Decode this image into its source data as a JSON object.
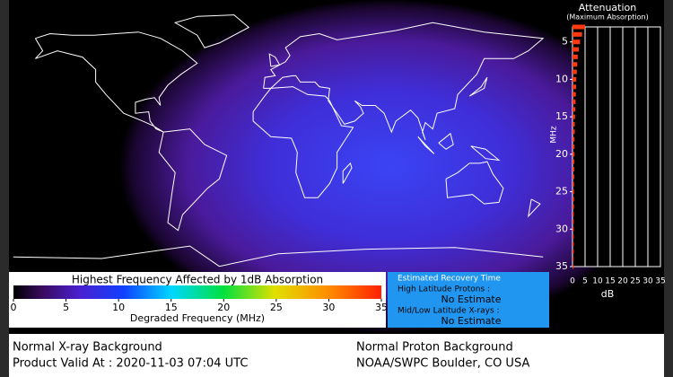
{
  "chart_data": {
    "type": "bar",
    "orientation": "horizontal",
    "title": "Attenuation",
    "subtitle": "(Maximum Absorption)",
    "y_label": "MHz",
    "x_label": "dB",
    "y": [
      3,
      4,
      5,
      6,
      7,
      8,
      9,
      10,
      11,
      12,
      13,
      14,
      15,
      16,
      17,
      18,
      19,
      20,
      21,
      22,
      23,
      24,
      25,
      26,
      27,
      28,
      29,
      30,
      31,
      32,
      33,
      34,
      35
    ],
    "values": [
      5,
      3.8,
      3,
      2.5,
      2.1,
      1.9,
      1.7,
      1.5,
      1.4,
      1.3,
      1.2,
      1.1,
      1,
      0.9,
      0.9,
      0.8,
      0.8,
      0.8,
      0.7,
      0.7,
      0.7,
      0.6,
      0.6,
      0.6,
      0.6,
      0.5,
      0.5,
      0.5,
      0.5,
      0.5,
      0.5,
      0.4,
      0.4
    ],
    "color": "#ff3a10",
    "xlim": [
      0,
      35
    ],
    "xticks": [
      0,
      5,
      10,
      15,
      20,
      25,
      30,
      35
    ],
    "ylim": [
      3,
      35
    ],
    "yticks": [
      5,
      10,
      15,
      20,
      25,
      30,
      35
    ],
    "grid": true
  },
  "colorbar": {
    "title": "Highest Frequency Affected by 1dB Absorption",
    "label": "Degraded Frequency (MHz)",
    "range": [
      0,
      35
    ],
    "ticks": [
      0,
      5,
      10,
      15,
      20,
      25,
      30,
      35
    ]
  },
  "recovery": {
    "title": "Estimated Recovery Time",
    "high_label": "High Latitude Protons :",
    "high_value": "No Estimate",
    "mid_label": "Mid/Low Latitude X-rays :",
    "mid_value": "No Estimate"
  },
  "footer": {
    "xray": "Normal X-ray Background",
    "valid": "Product Valid At : 2020-11-03 07:04 UTC",
    "proton": "Normal Proton Background",
    "source": "NOAA/SWPC Boulder, CO USA"
  }
}
